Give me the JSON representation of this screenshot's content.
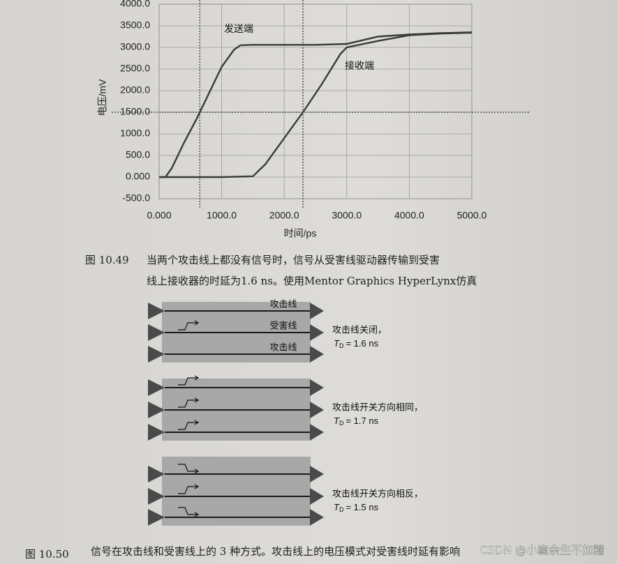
{
  "chart_data": {
    "type": "line",
    "y_label": "电压/mV",
    "x_label": "时间/ps",
    "xlim": [
      0,
      5000
    ],
    "ylim": [
      -500,
      4000
    ],
    "xticks": [
      {
        "value": 0,
        "label": "0.000"
      },
      {
        "value": 1000,
        "label": "1000.0"
      },
      {
        "value": 2000,
        "label": "2000.0"
      },
      {
        "value": 3000,
        "label": "3000.0"
      },
      {
        "value": 4000,
        "label": "4000.0"
      },
      {
        "value": 5000,
        "label": "5000.0"
      }
    ],
    "yticks": [
      {
        "value": -500,
        "label": "-500.0"
      },
      {
        "value": 0,
        "label": "0.000"
      },
      {
        "value": 500,
        "label": "500.0"
      },
      {
        "value": 1000,
        "label": "1000.0"
      },
      {
        "value": 1500,
        "label": "1500.0"
      },
      {
        "value": 2000,
        "label": "2000.0"
      },
      {
        "value": 2500,
        "label": "2500.0"
      },
      {
        "value": 3000,
        "label": "3000.0"
      },
      {
        "value": 3500,
        "label": "3500.0"
      },
      {
        "value": 4000,
        "label": "4000.0"
      }
    ],
    "grid": true,
    "hlines": [
      1500
    ],
    "vlines": [
      650,
      2300
    ],
    "series": [
      {
        "name": "发送端",
        "color": "#3a3a3a",
        "x": [
          0,
          100,
          200,
          400,
          600,
          800,
          1000,
          1200,
          1300,
          1500,
          2000,
          2500,
          3000,
          3500,
          4000,
          4500,
          5000
        ],
        "values": [
          0,
          0,
          200,
          800,
          1350,
          1950,
          2550,
          2950,
          3050,
          3060,
          3060,
          3060,
          3080,
          3250,
          3300,
          3330,
          3350
        ]
      },
      {
        "name": "接收端",
        "color": "#3a3a3a",
        "x": [
          0,
          1000,
          1500,
          1700,
          2000,
          2300,
          2600,
          2900,
          3000,
          3500,
          4000,
          4500,
          5000
        ],
        "values": [
          0,
          0,
          20,
          300,
          900,
          1500,
          2150,
          2850,
          3000,
          3150,
          3280,
          3320,
          3340
        ]
      }
    ]
  },
  "figure_1": {
    "number": "图 10.49",
    "caption": [
      "当两个攻击线上都没有信号时，信号从受害线驱动器传输到受害",
      "线上接收器的时延为1.6 ns。使用Mentor Graphics HyperLynx仿真"
    ]
  },
  "figure_2": {
    "number": "图 10.50",
    "caption": "信号在攻击线和受害线上的 3 种方式。攻击线上的电压模式对受害线时延有影响",
    "line_labels": [
      "攻击线",
      "受害线",
      "攻击线"
    ],
    "td_symbol": "T",
    "td_subscript": "D",
    "cases": [
      {
        "note": "攻击线关闭，",
        "td": "= 1.6 ns"
      },
      {
        "note": "攻击线开关方向相同，",
        "td": "= 1.7 ns"
      },
      {
        "note": "攻击线开关方向相反，",
        "td": "= 1.5 ns"
      }
    ]
  },
  "watermark": "CSDN @小幽余生不加糖"
}
